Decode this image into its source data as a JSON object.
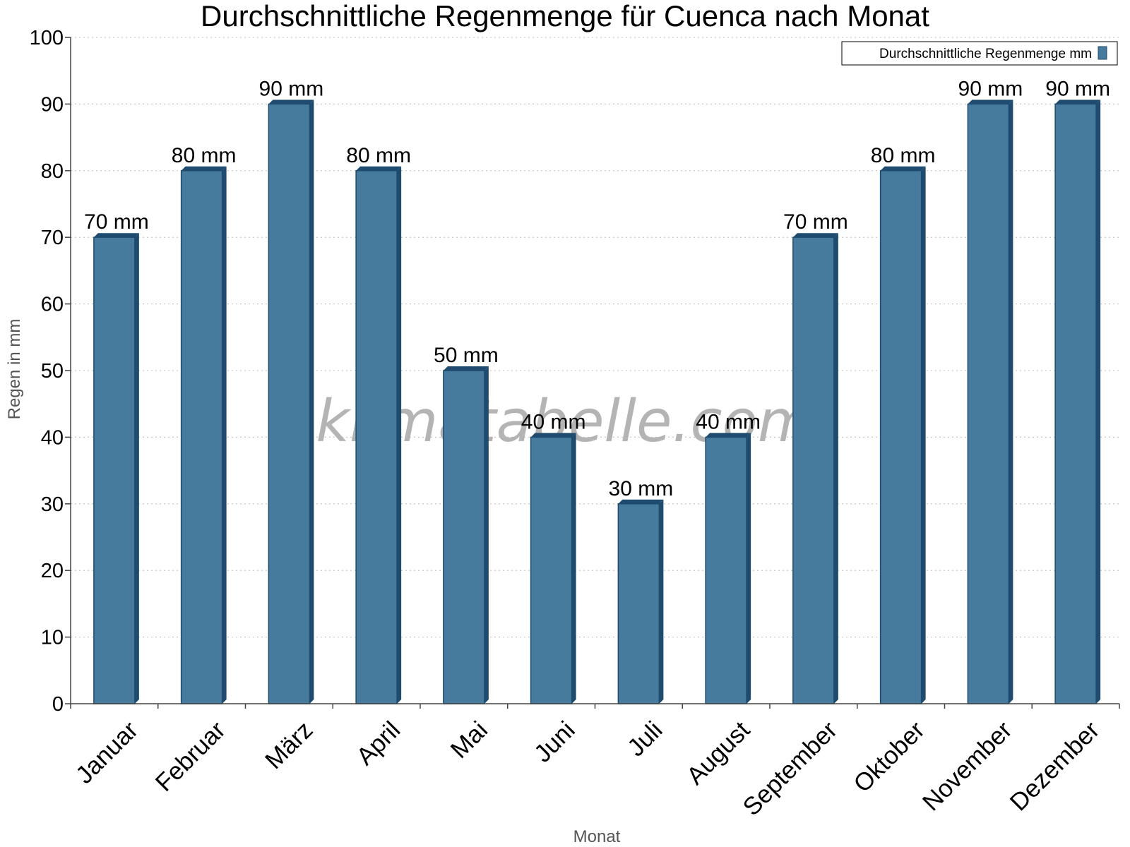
{
  "chart_data": {
    "type": "bar",
    "title": "Durchschnittliche Regenmenge für Cuenca nach Monat",
    "xlabel": "Monat",
    "ylabel": "Regen in mm",
    "ylim": [
      0,
      100
    ],
    "y_ticks": [
      0,
      10,
      20,
      30,
      40,
      50,
      60,
      70,
      80,
      90,
      100
    ],
    "grid": true,
    "legend_position": "top-right",
    "categories": [
      "Januar",
      "Februar",
      "März",
      "April",
      "Mai",
      "Juni",
      "Juli",
      "August",
      "September",
      "Oktober",
      "November",
      "Dezember"
    ],
    "series": [
      {
        "name": "Durchschnittliche Regenmenge mm",
        "values": [
          70,
          80,
          90,
          80,
          50,
          40,
          30,
          40,
          70,
          80,
          90,
          90
        ],
        "data_labels": [
          "70 mm",
          "80 mm",
          "90 mm",
          "80 mm",
          "50 mm",
          "40 mm",
          "30 mm",
          "40 mm",
          "70 mm",
          "80 mm",
          "90 mm",
          "90 mm"
        ],
        "color": "#467b9e",
        "shade_color": "#1e4b6e"
      }
    ]
  },
  "watermark": "klimatabelle.com"
}
